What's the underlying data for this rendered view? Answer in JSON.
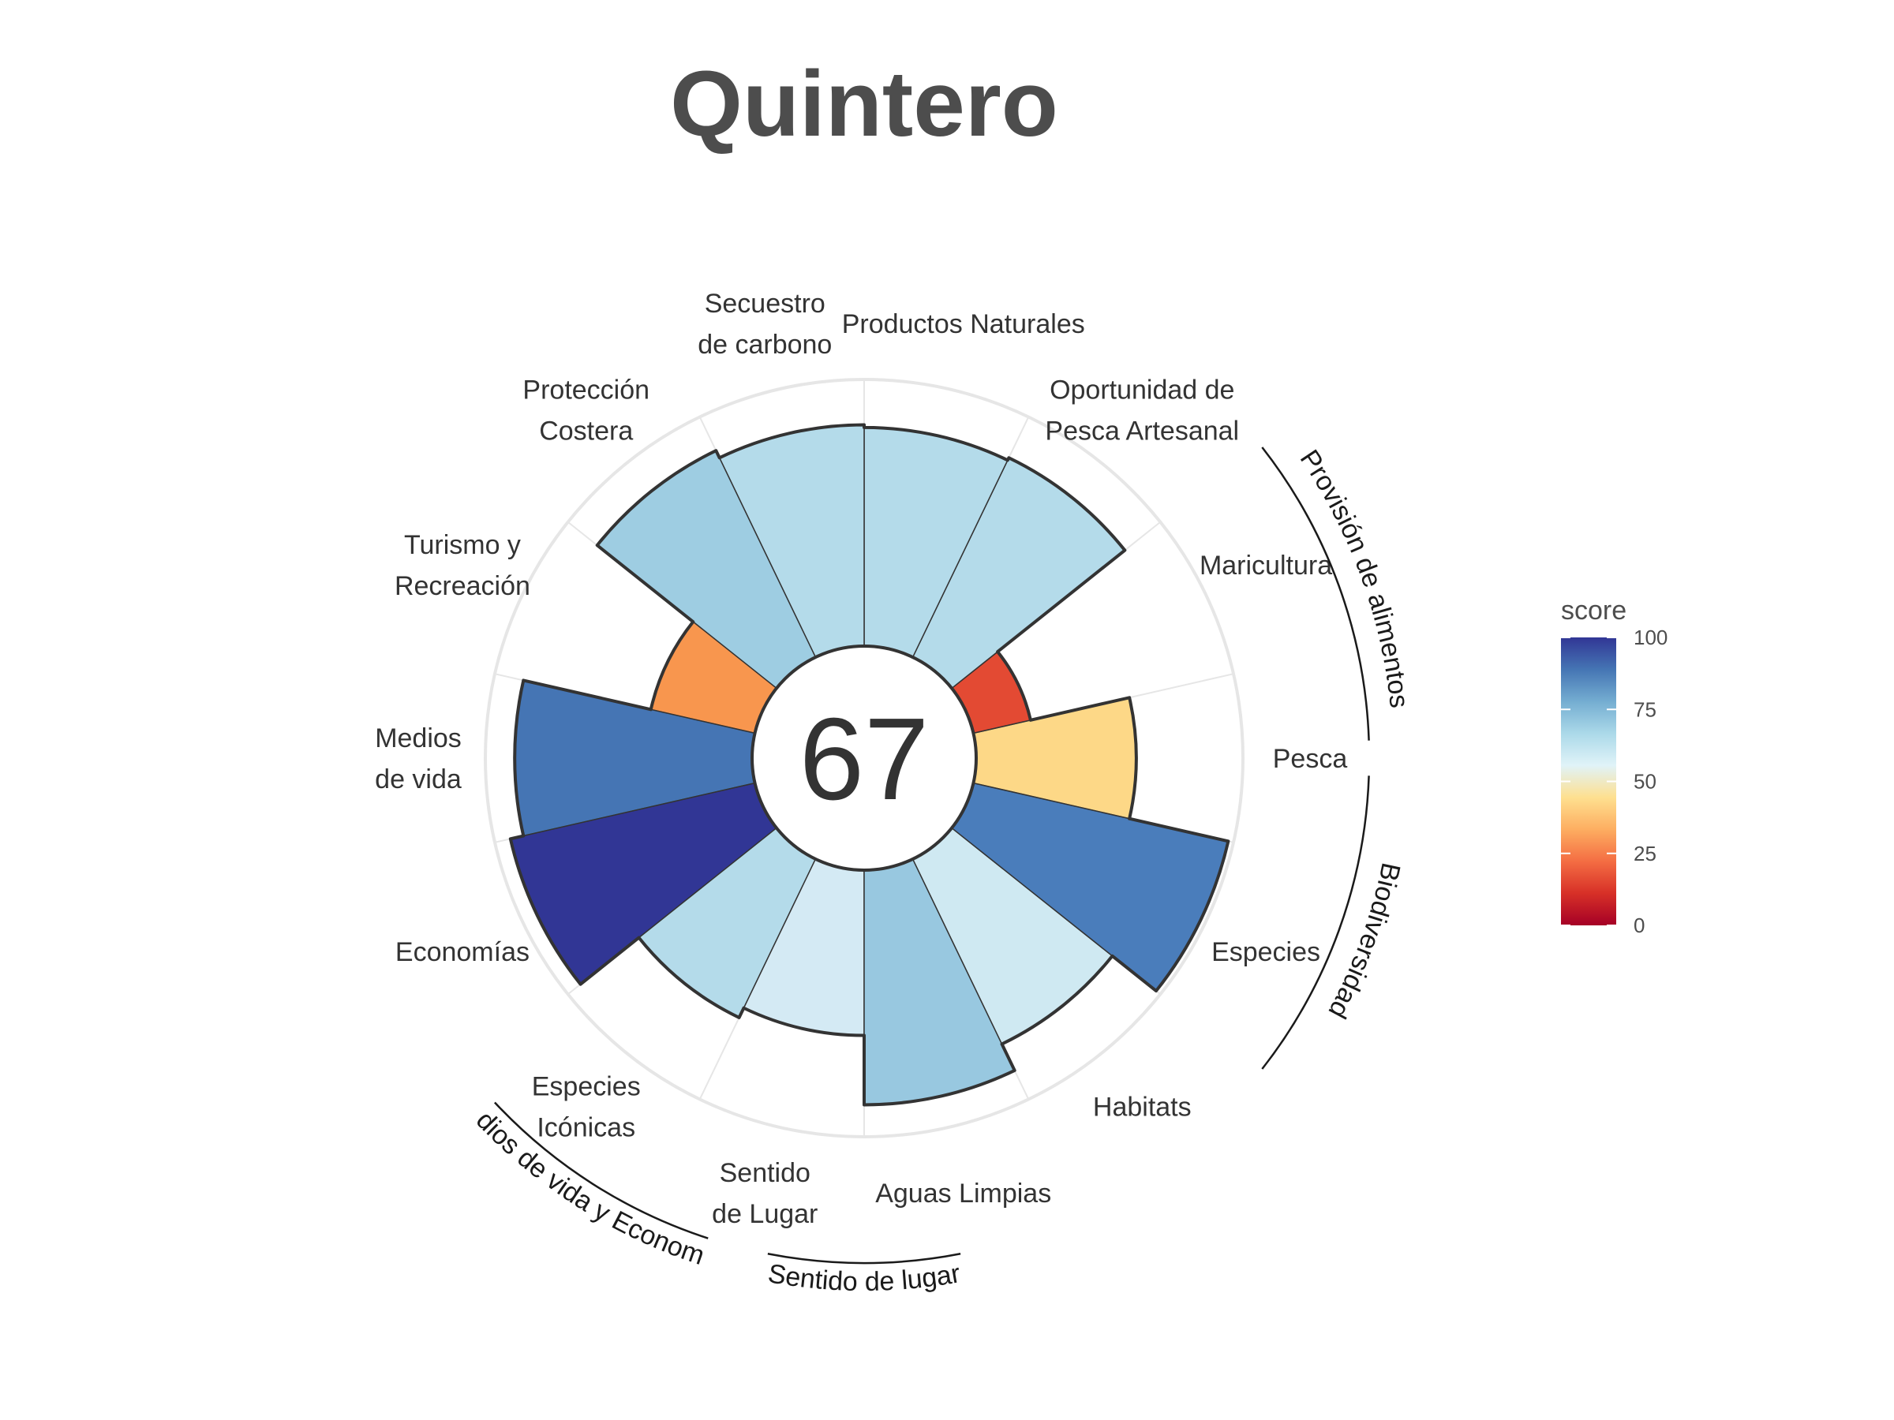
{
  "chart_data": {
    "type": "polar-bar",
    "title": "Quintero",
    "center_score": "67",
    "rlim": [
      0,
      100
    ],
    "goals": [
      {
        "label": [
          "Pesca"
        ],
        "value": 60,
        "color": "#fdd887"
      },
      {
        "label": [
          "Maricultura"
        ],
        "value": 22,
        "color": "#e34a33"
      },
      {
        "label": [
          "Oportunidad de",
          "Pesca Artesanal"
        ],
        "value": 83,
        "color": "#b4dbea"
      },
      {
        "label": [
          "Productos Naturales"
        ],
        "value": 82,
        "color": "#b4dbea"
      },
      {
        "label": [
          "Secuestro",
          "de carbono"
        ],
        "value": 83,
        "color": "#b4dbea"
      },
      {
        "label": [
          "Protección",
          "Costera"
        ],
        "value": 86,
        "color": "#9ecde2"
      },
      {
        "label": [
          "Turismo y",
          "Recreación"
        ],
        "value": 40,
        "color": "#f8964e"
      },
      {
        "label": [
          "Medios",
          "de vida"
        ],
        "value": 89,
        "color": "#4575b4"
      },
      {
        "label": [
          "Economías"
        ],
        "value": 94,
        "color": "#313695"
      },
      {
        "label": [
          "Especies",
          "Icónicas"
        ],
        "value": 66,
        "color": "#b4dbea"
      },
      {
        "label": [
          "Sentido",
          "de Lugar"
        ],
        "value": 62,
        "color": "#d4eaf4"
      },
      {
        "label": [
          "Aguas Limpias"
        ],
        "value": 88,
        "color": "#98c8e0"
      },
      {
        "label": [
          "Habitats"
        ],
        "value": 77,
        "color": "#cfe9f2"
      },
      {
        "label": [
          "Especies"
        ],
        "value": 98,
        "color": "#4a7dbb"
      }
    ],
    "groups": [
      {
        "label": "Provisión de alimentos"
      },
      {
        "label": "Biodiversidad"
      },
      {
        "label": "Sentido de lugar"
      },
      {
        "label": "Medios de vida y Economías"
      }
    ],
    "legend": {
      "title": "score",
      "ticks": [
        "0",
        "25",
        "50",
        "75",
        "100"
      ],
      "colors": [
        "#a50026",
        "#d73027",
        "#f46d43",
        "#fdae61",
        "#fee090",
        "#e0f3f8",
        "#abd9e9",
        "#74add1",
        "#4575b4",
        "#313695"
      ]
    }
  }
}
